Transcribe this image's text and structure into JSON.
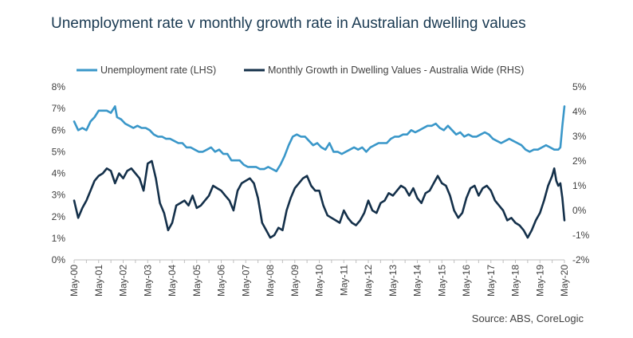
{
  "title": "Unemployment rate v monthly growth rate in Australian dwelling values",
  "source": "Source: ABS, CoreLogic",
  "chart_data": {
    "type": "line",
    "title": "Unemployment rate v monthly growth rate in Australian dwelling values",
    "x_ticks": [
      "May-00",
      "May-01",
      "May-02",
      "May-03",
      "May-04",
      "May-05",
      "May-06",
      "May-07",
      "May-08",
      "May-09",
      "May-10",
      "May-11",
      "May-12",
      "May-13",
      "May-14",
      "May-15",
      "May-16",
      "May-17",
      "May-18",
      "May-19",
      "May-20"
    ],
    "left_axis": {
      "ylim": [
        0,
        8
      ],
      "ticks": [
        "0%",
        "1%",
        "2%",
        "3%",
        "4%",
        "5%",
        "6%",
        "7%",
        "8%"
      ]
    },
    "right_axis": {
      "ylim": [
        -2,
        5
      ],
      "ticks": [
        "-2%",
        "-1%",
        "0%",
        "1%",
        "2%",
        "3%",
        "4%",
        "5%"
      ]
    },
    "legend_position": "top",
    "series": [
      {
        "name": "Unemployment rate (LHS)",
        "axis": "left",
        "color": "#3a97c9",
        "points": [
          [
            "May-00",
            6.4
          ],
          [
            "Jul-00",
            6.0
          ],
          [
            "Sep-00",
            6.1
          ],
          [
            "Nov-00",
            6.0
          ],
          [
            "Jan-01",
            6.4
          ],
          [
            "Mar-01",
            6.6
          ],
          [
            "May-01",
            6.9
          ],
          [
            "Jul-01",
            6.9
          ],
          [
            "Sep-01",
            6.9
          ],
          [
            "Nov-01",
            6.8
          ],
          [
            "Jan-02",
            7.1
          ],
          [
            "Feb-02",
            6.6
          ],
          [
            "Apr-02",
            6.5
          ],
          [
            "Jun-02",
            6.3
          ],
          [
            "Aug-02",
            6.2
          ],
          [
            "Oct-02",
            6.1
          ],
          [
            "Dec-02",
            6.2
          ],
          [
            "Feb-03",
            6.1
          ],
          [
            "Apr-03",
            6.1
          ],
          [
            "Jun-03",
            6.0
          ],
          [
            "Aug-03",
            5.8
          ],
          [
            "Oct-03",
            5.7
          ],
          [
            "Dec-03",
            5.7
          ],
          [
            "Feb-04",
            5.6
          ],
          [
            "Apr-04",
            5.6
          ],
          [
            "Jun-04",
            5.5
          ],
          [
            "Aug-04",
            5.4
          ],
          [
            "Oct-04",
            5.4
          ],
          [
            "Dec-04",
            5.2
          ],
          [
            "Feb-05",
            5.2
          ],
          [
            "Apr-05",
            5.1
          ],
          [
            "Jun-05",
            5.0
          ],
          [
            "Aug-05",
            5.0
          ],
          [
            "Oct-05",
            5.1
          ],
          [
            "Dec-05",
            5.2
          ],
          [
            "Feb-06",
            5.0
          ],
          [
            "Apr-06",
            5.1
          ],
          [
            "Jun-06",
            4.9
          ],
          [
            "Aug-06",
            4.9
          ],
          [
            "Oct-06",
            4.6
          ],
          [
            "Dec-06",
            4.6
          ],
          [
            "Feb-07",
            4.6
          ],
          [
            "Apr-07",
            4.4
          ],
          [
            "Jun-07",
            4.3
          ],
          [
            "Aug-07",
            4.3
          ],
          [
            "Oct-07",
            4.3
          ],
          [
            "Dec-07",
            4.2
          ],
          [
            "Feb-08",
            4.2
          ],
          [
            "Apr-08",
            4.3
          ],
          [
            "Jun-08",
            4.2
          ],
          [
            "Aug-08",
            4.1
          ],
          [
            "Oct-08",
            4.4
          ],
          [
            "Dec-08",
            4.8
          ],
          [
            "Feb-09",
            5.3
          ],
          [
            "Apr-09",
            5.7
          ],
          [
            "Jun-09",
            5.8
          ],
          [
            "Aug-09",
            5.7
          ],
          [
            "Oct-09",
            5.7
          ],
          [
            "Dec-09",
            5.5
          ],
          [
            "Feb-10",
            5.3
          ],
          [
            "Apr-10",
            5.4
          ],
          [
            "Jun-10",
            5.2
          ],
          [
            "Aug-10",
            5.1
          ],
          [
            "Oct-10",
            5.4
          ],
          [
            "Dec-10",
            5.0
          ],
          [
            "Feb-11",
            5.0
          ],
          [
            "Apr-11",
            4.9
          ],
          [
            "Jun-11",
            5.0
          ],
          [
            "Aug-11",
            5.1
          ],
          [
            "Oct-11",
            5.2
          ],
          [
            "Dec-11",
            5.1
          ],
          [
            "Feb-12",
            5.2
          ],
          [
            "Apr-12",
            5.0
          ],
          [
            "Jun-12",
            5.2
          ],
          [
            "Aug-12",
            5.3
          ],
          [
            "Oct-12",
            5.4
          ],
          [
            "Dec-12",
            5.4
          ],
          [
            "Feb-13",
            5.4
          ],
          [
            "Apr-13",
            5.6
          ],
          [
            "Jun-13",
            5.7
          ],
          [
            "Aug-13",
            5.7
          ],
          [
            "Oct-13",
            5.8
          ],
          [
            "Dec-13",
            5.8
          ],
          [
            "Feb-14",
            6.0
          ],
          [
            "Apr-14",
            5.9
          ],
          [
            "Jun-14",
            6.0
          ],
          [
            "Aug-14",
            6.1
          ],
          [
            "Oct-14",
            6.2
          ],
          [
            "Dec-14",
            6.2
          ],
          [
            "Feb-15",
            6.3
          ],
          [
            "Apr-15",
            6.1
          ],
          [
            "Jun-15",
            6.0
          ],
          [
            "Aug-15",
            6.2
          ],
          [
            "Oct-15",
            6.0
          ],
          [
            "Dec-15",
            5.8
          ],
          [
            "Feb-16",
            5.9
          ],
          [
            "Apr-16",
            5.7
          ],
          [
            "Jun-16",
            5.8
          ],
          [
            "Aug-16",
            5.7
          ],
          [
            "Oct-16",
            5.7
          ],
          [
            "Dec-16",
            5.8
          ],
          [
            "Feb-17",
            5.9
          ],
          [
            "Apr-17",
            5.8
          ],
          [
            "Jun-17",
            5.6
          ],
          [
            "Aug-17",
            5.5
          ],
          [
            "Oct-17",
            5.4
          ],
          [
            "Dec-17",
            5.5
          ],
          [
            "Feb-18",
            5.6
          ],
          [
            "Apr-18",
            5.5
          ],
          [
            "Jun-18",
            5.4
          ],
          [
            "Aug-18",
            5.3
          ],
          [
            "Oct-18",
            5.1
          ],
          [
            "Dec-18",
            5.0
          ],
          [
            "Feb-19",
            5.1
          ],
          [
            "Apr-19",
            5.1
          ],
          [
            "Jun-19",
            5.2
          ],
          [
            "Aug-19",
            5.3
          ],
          [
            "Oct-19",
            5.2
          ],
          [
            "Dec-19",
            5.1
          ],
          [
            "Feb-20",
            5.1
          ],
          [
            "Mar-20",
            5.2
          ],
          [
            "Apr-20",
            6.2
          ],
          [
            "May-20",
            7.1
          ]
        ]
      },
      {
        "name": "Monthly Growth in Dwelling Values - Australia Wide (RHS)",
        "axis": "right",
        "color": "#14304a",
        "points": [
          [
            "May-00",
            0.4
          ],
          [
            "Jul-00",
            -0.3
          ],
          [
            "Sep-00",
            0.1
          ],
          [
            "Nov-00",
            0.4
          ],
          [
            "Jan-01",
            0.8
          ],
          [
            "Mar-01",
            1.2
          ],
          [
            "May-01",
            1.4
          ],
          [
            "Jul-01",
            1.5
          ],
          [
            "Sep-01",
            1.7
          ],
          [
            "Nov-01",
            1.6
          ],
          [
            "Jan-02",
            1.1
          ],
          [
            "Mar-02",
            1.5
          ],
          [
            "May-02",
            1.3
          ],
          [
            "Jul-02",
            1.6
          ],
          [
            "Sep-02",
            1.7
          ],
          [
            "Nov-02",
            1.5
          ],
          [
            "Jan-03",
            1.3
          ],
          [
            "Mar-03",
            0.8
          ],
          [
            "May-03",
            1.9
          ],
          [
            "Jul-03",
            2.0
          ],
          [
            "Sep-03",
            1.3
          ],
          [
            "Nov-03",
            0.3
          ],
          [
            "Jan-04",
            -0.1
          ],
          [
            "Mar-04",
            -0.8
          ],
          [
            "May-04",
            -0.5
          ],
          [
            "Jul-04",
            0.2
          ],
          [
            "Sep-04",
            0.3
          ],
          [
            "Nov-04",
            0.4
          ],
          [
            "Jan-05",
            0.2
          ],
          [
            "Mar-05",
            0.6
          ],
          [
            "May-05",
            0.1
          ],
          [
            "Jul-05",
            0.2
          ],
          [
            "Sep-05",
            0.4
          ],
          [
            "Nov-05",
            0.6
          ],
          [
            "Jan-06",
            1.0
          ],
          [
            "Mar-06",
            0.9
          ],
          [
            "May-06",
            0.8
          ],
          [
            "Jul-06",
            0.6
          ],
          [
            "Sep-06",
            0.4
          ],
          [
            "Nov-06",
            0.0
          ],
          [
            "Jan-07",
            0.8
          ],
          [
            "Mar-07",
            1.1
          ],
          [
            "May-07",
            1.2
          ],
          [
            "Jul-07",
            1.3
          ],
          [
            "Sep-07",
            1.1
          ],
          [
            "Nov-07",
            0.5
          ],
          [
            "Jan-08",
            -0.5
          ],
          [
            "Mar-08",
            -0.8
          ],
          [
            "May-08",
            -1.1
          ],
          [
            "Jul-08",
            -1.0
          ],
          [
            "Sep-08",
            -0.7
          ],
          [
            "Nov-08",
            -0.8
          ],
          [
            "Jan-09",
            0.0
          ],
          [
            "Mar-09",
            0.5
          ],
          [
            "May-09",
            0.9
          ],
          [
            "Jul-09",
            1.1
          ],
          [
            "Sep-09",
            1.3
          ],
          [
            "Nov-09",
            1.4
          ],
          [
            "Jan-10",
            1.0
          ],
          [
            "Mar-10",
            0.8
          ],
          [
            "May-10",
            0.8
          ],
          [
            "Jul-10",
            0.2
          ],
          [
            "Sep-10",
            -0.2
          ],
          [
            "Nov-10",
            -0.3
          ],
          [
            "Jan-11",
            -0.4
          ],
          [
            "Mar-11",
            -0.5
          ],
          [
            "May-11",
            0.0
          ],
          [
            "Jul-11",
            -0.3
          ],
          [
            "Sep-11",
            -0.5
          ],
          [
            "Nov-11",
            -0.6
          ],
          [
            "Jan-12",
            -0.4
          ],
          [
            "Mar-12",
            -0.1
          ],
          [
            "May-12",
            0.4
          ],
          [
            "Jul-12",
            0.0
          ],
          [
            "Sep-12",
            -0.1
          ],
          [
            "Nov-12",
            0.3
          ],
          [
            "Jan-13",
            0.4
          ],
          [
            "Mar-13",
            0.7
          ],
          [
            "May-13",
            0.6
          ],
          [
            "Jul-13",
            0.8
          ],
          [
            "Sep-13",
            1.0
          ],
          [
            "Nov-13",
            0.9
          ],
          [
            "Jan-14",
            0.6
          ],
          [
            "Mar-14",
            0.9
          ],
          [
            "May-14",
            0.5
          ],
          [
            "Jul-14",
            0.3
          ],
          [
            "Sep-14",
            0.7
          ],
          [
            "Nov-14",
            0.8
          ],
          [
            "Jan-15",
            1.1
          ],
          [
            "Mar-15",
            1.4
          ],
          [
            "May-15",
            1.1
          ],
          [
            "Jul-15",
            1.0
          ],
          [
            "Sep-15",
            0.6
          ],
          [
            "Nov-15",
            0.0
          ],
          [
            "Jan-16",
            -0.3
          ],
          [
            "Mar-16",
            -0.1
          ],
          [
            "May-16",
            0.5
          ],
          [
            "Jul-16",
            0.9
          ],
          [
            "Sep-16",
            1.0
          ],
          [
            "Nov-16",
            0.6
          ],
          [
            "Jan-17",
            0.9
          ],
          [
            "Mar-17",
            1.0
          ],
          [
            "May-17",
            0.8
          ],
          [
            "Jul-17",
            0.4
          ],
          [
            "Sep-17",
            0.2
          ],
          [
            "Nov-17",
            0.0
          ],
          [
            "Jan-18",
            -0.4
          ],
          [
            "Mar-18",
            -0.3
          ],
          [
            "May-18",
            -0.5
          ],
          [
            "Jul-18",
            -0.6
          ],
          [
            "Sep-18",
            -0.8
          ],
          [
            "Nov-18",
            -1.1
          ],
          [
            "Jan-19",
            -0.8
          ],
          [
            "Mar-19",
            -0.4
          ],
          [
            "May-19",
            -0.1
          ],
          [
            "Jul-19",
            0.4
          ],
          [
            "Sep-19",
            1.0
          ],
          [
            "Nov-19",
            1.4
          ],
          [
            "Dec-19",
            1.7
          ],
          [
            "Jan-20",
            1.2
          ],
          [
            "Feb-20",
            1.0
          ],
          [
            "Mar-20",
            1.1
          ],
          [
            "Apr-20",
            0.5
          ],
          [
            "May-20",
            -0.4
          ]
        ]
      }
    ]
  }
}
